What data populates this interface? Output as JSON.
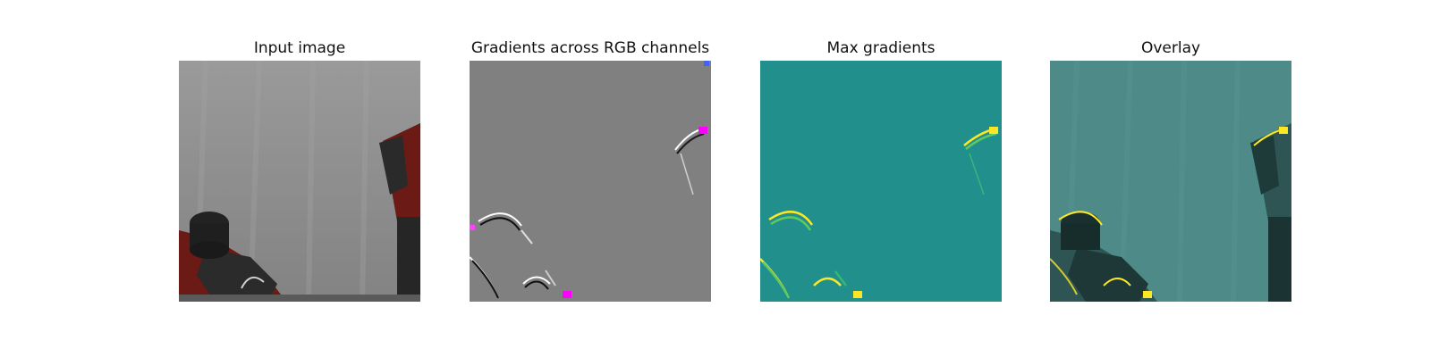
{
  "figure": {
    "panels": [
      {
        "title": "Input image"
      },
      {
        "title": "Gradients across RGB channels"
      },
      {
        "title": "Max gradients"
      },
      {
        "title": "Overlay"
      }
    ]
  },
  "colors": {
    "background_gray": "#8c8c8c",
    "gradient_gray": "#808080",
    "viridis_teal": "#21908c",
    "viridis_yellow": "#fde725",
    "overlay_teal": "#4e8a87",
    "robot_red": "#6b1a16",
    "robot_dark": "#2a2a2a"
  }
}
